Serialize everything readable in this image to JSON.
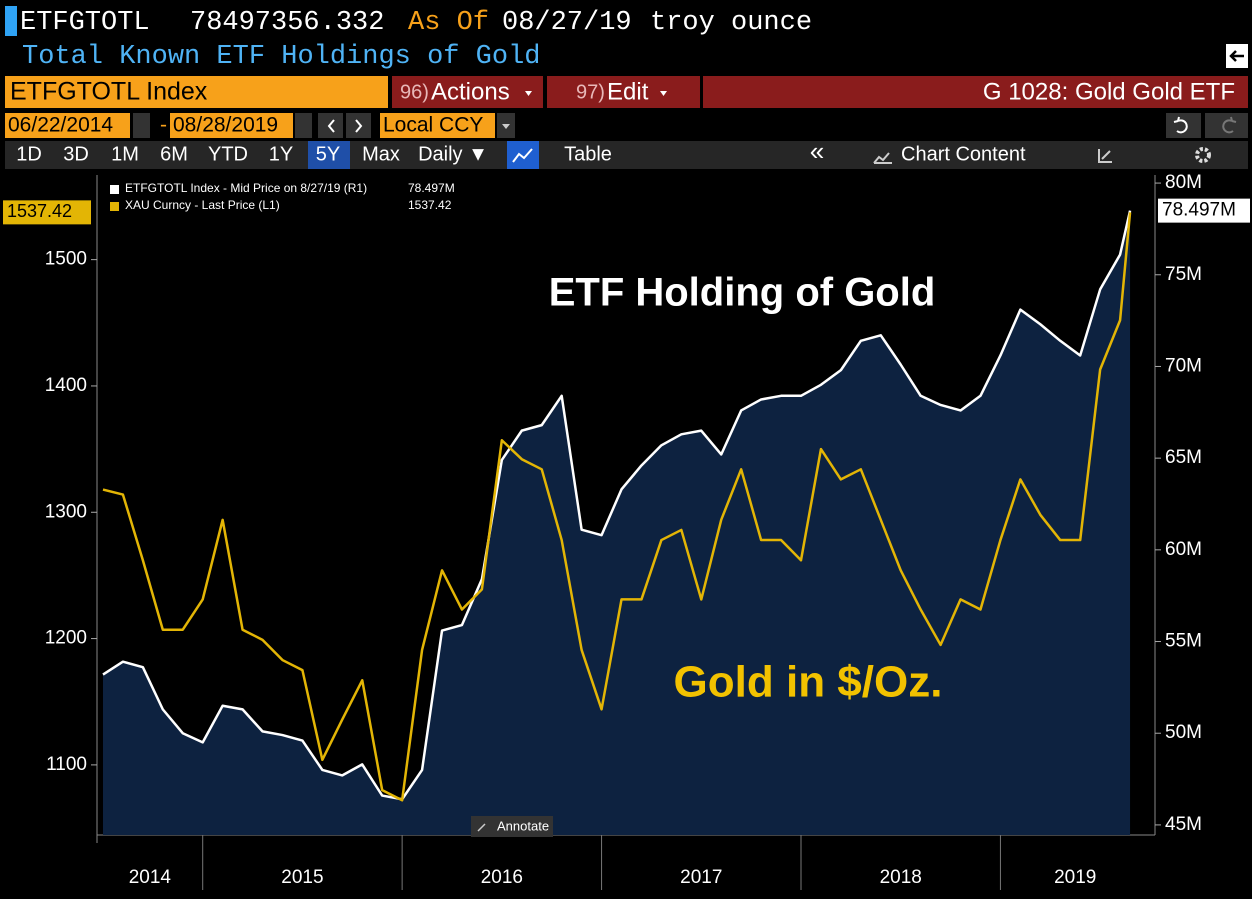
{
  "header": {
    "ticker": "ETFGTOTL",
    "value": 78497356.332,
    "as_of": "As Of",
    "date": "08/27/19",
    "unit": "troy ounce",
    "subtitle": "Total Known ETF Holdings of Gold"
  },
  "toolbar": {
    "security": "ETFGTOTL Index",
    "actions_num": "96)",
    "actions": "Actions",
    "edit_num": "97)",
    "edit": "Edit",
    "chart_name": "G 1028: Gold Gold ETF"
  },
  "dates": {
    "start": "06/22/2014",
    "separator": "-",
    "end": "08/28/2019",
    "currency": "Local CCY"
  },
  "buttons": {
    "periods": [
      "1D",
      "3D",
      "1M",
      "6M",
      "YTD",
      "1Y",
      "5Y",
      "Max"
    ],
    "frequency": "Daily ▼",
    "table": "Table",
    "collapse": "«",
    "chart_content": "Chart Content",
    "annotate": "Annotate"
  },
  "chart_data": {
    "type": "line",
    "x": [
      2014.5,
      2014.6,
      2014.7,
      2014.8,
      2014.9,
      2015.0,
      2015.1,
      2015.2,
      2015.3,
      2015.4,
      2015.5,
      2015.6,
      2015.7,
      2015.8,
      2015.9,
      2016.0,
      2016.1,
      2016.2,
      2016.3,
      2016.4,
      2016.5,
      2016.6,
      2016.7,
      2016.8,
      2016.9,
      2017.0,
      2017.1,
      2017.2,
      2017.3,
      2017.4,
      2017.5,
      2017.6,
      2017.7,
      2017.8,
      2017.9,
      2018.0,
      2018.1,
      2018.2,
      2018.3,
      2018.4,
      2018.5,
      2018.6,
      2018.7,
      2018.8,
      2018.9,
      2019.0,
      2019.1,
      2019.2,
      2019.3,
      2019.4,
      2019.5,
      2019.6,
      2019.65
    ],
    "xlim": [
      2014.47,
      2019.75
    ],
    "xticks": [
      2015,
      2016,
      2017,
      2018,
      2019
    ],
    "year_labels": [
      "2014",
      "2015",
      "2016",
      "2017",
      "2018",
      "2019"
    ],
    "ylim": [
      1044.5,
      1567
    ],
    "yticks": [
      1100,
      1200,
      1300,
      1400,
      1500
    ],
    "y2lim": [
      44.45,
      80.44
    ],
    "y2ticks": [
      {
        "value": 45,
        "label": "45M"
      },
      {
        "value": 50,
        "label": "50M"
      },
      {
        "value": 55,
        "label": "55M"
      },
      {
        "value": 60,
        "label": "60M"
      },
      {
        "value": 65,
        "label": "65M"
      },
      {
        "value": 70,
        "label": "70M"
      },
      {
        "value": 75,
        "label": "75M"
      },
      {
        "value": 80,
        "label": "80M"
      }
    ],
    "series": [
      {
        "name": "ETFGTOTL Index - Mid Price on 8/27/19 (R1)",
        "color": "#ffffff",
        "area_color": "#0d2240",
        "axis": "y2",
        "last_label": "78.497M",
        "values": [
          53.2,
          53.9,
          53.6,
          51.3,
          50.0,
          49.5,
          51.5,
          51.3,
          50.1,
          49.9,
          49.6,
          48.0,
          47.7,
          48.3,
          46.6,
          46.4,
          48.0,
          55.6,
          55.9,
          58.4,
          64.9,
          66.5,
          66.8,
          68.4,
          61.1,
          60.8,
          63.3,
          64.6,
          65.7,
          66.3,
          66.5,
          65.2,
          67.6,
          68.2,
          68.4,
          68.4,
          69.0,
          69.8,
          71.4,
          71.7,
          70.1,
          68.4,
          67.9,
          67.6,
          68.4,
          70.6,
          73.1,
          72.3,
          71.4,
          70.6,
          74.2,
          76.1,
          78.497
        ]
      },
      {
        "name": "XAU Curncy - Last Price (L1)",
        "color": "#e3b505",
        "axis": "y",
        "last_label": "1537.42",
        "values": [
          1318,
          1314,
          1262,
          1207,
          1207,
          1231,
          1294,
          1207,
          1199,
          1183,
          1175,
          1104,
          1136,
          1167,
          1080,
          1072,
          1191,
          1254,
          1223,
          1239,
          1357,
          1342,
          1334,
          1278,
          1191,
          1144,
          1231,
          1231,
          1278,
          1286,
          1231,
          1294,
          1334,
          1278,
          1278,
          1262,
          1350,
          1326,
          1334,
          1294,
          1254,
          1223,
          1195,
          1231,
          1223,
          1278,
          1326,
          1298,
          1278,
          1278,
          1413,
          1452,
          1537.42
        ]
      }
    ],
    "annotations": [
      {
        "text": "ETF Holding of Gold",
        "color": "#ffffff"
      },
      {
        "text": "Gold in $/Oz.",
        "color": "#f2c200"
      }
    ]
  }
}
